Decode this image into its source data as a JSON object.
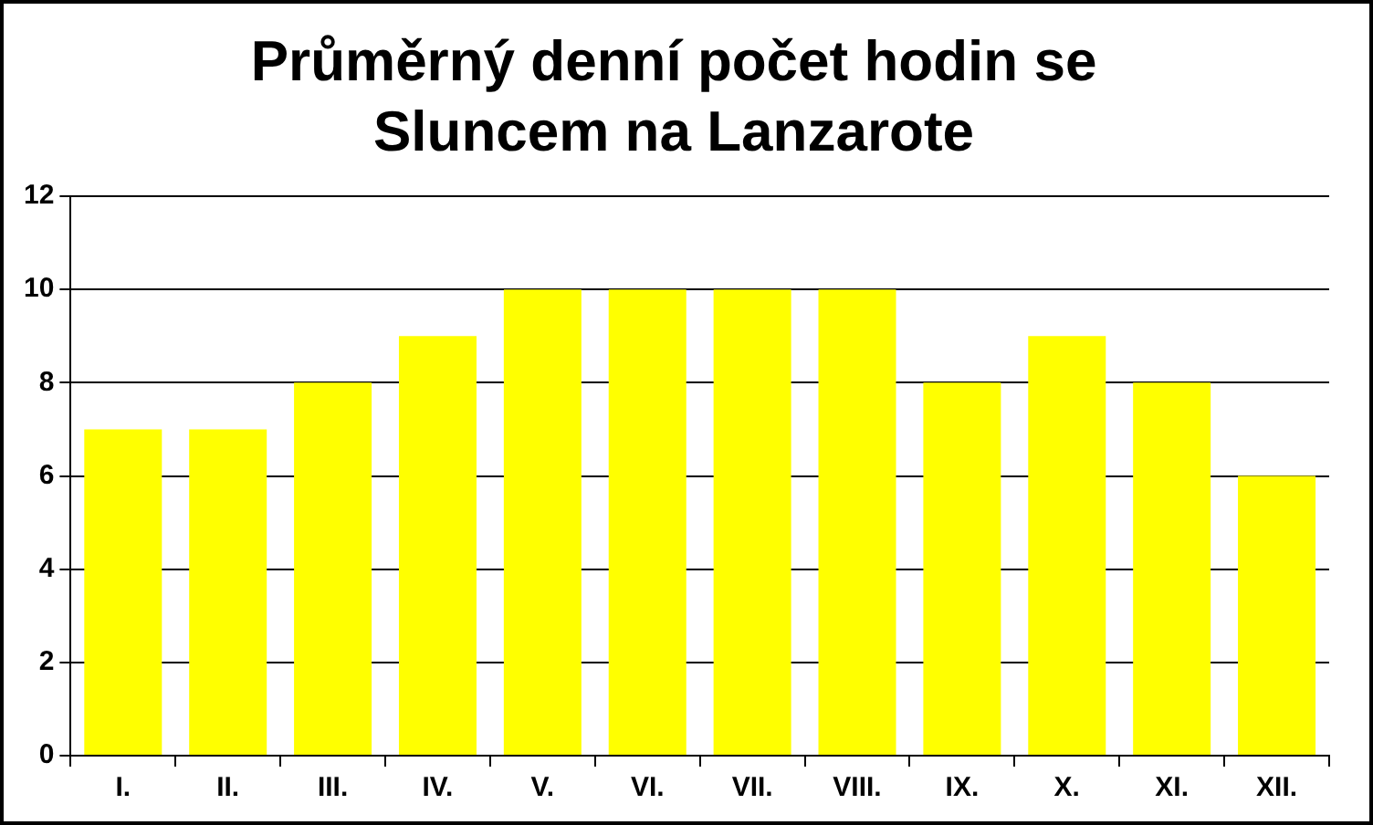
{
  "chart_data": {
    "type": "bar",
    "title": "Průměrný denní počet hodin se\nSluncem na Lanzarote",
    "categories": [
      "I.",
      "II.",
      "III.",
      "IV.",
      "V.",
      "VI.",
      "VII.",
      "VIII.",
      "IX.",
      "X.",
      "XI.",
      "XII."
    ],
    "values": [
      7,
      7,
      8,
      9,
      10,
      10,
      10,
      10,
      8,
      9,
      8,
      6
    ],
    "color": "#ffff00",
    "ylim": [
      0,
      12
    ],
    "yticks": [
      0,
      2,
      4,
      6,
      8,
      10,
      12
    ],
    "grid": "y",
    "legend": false
  }
}
